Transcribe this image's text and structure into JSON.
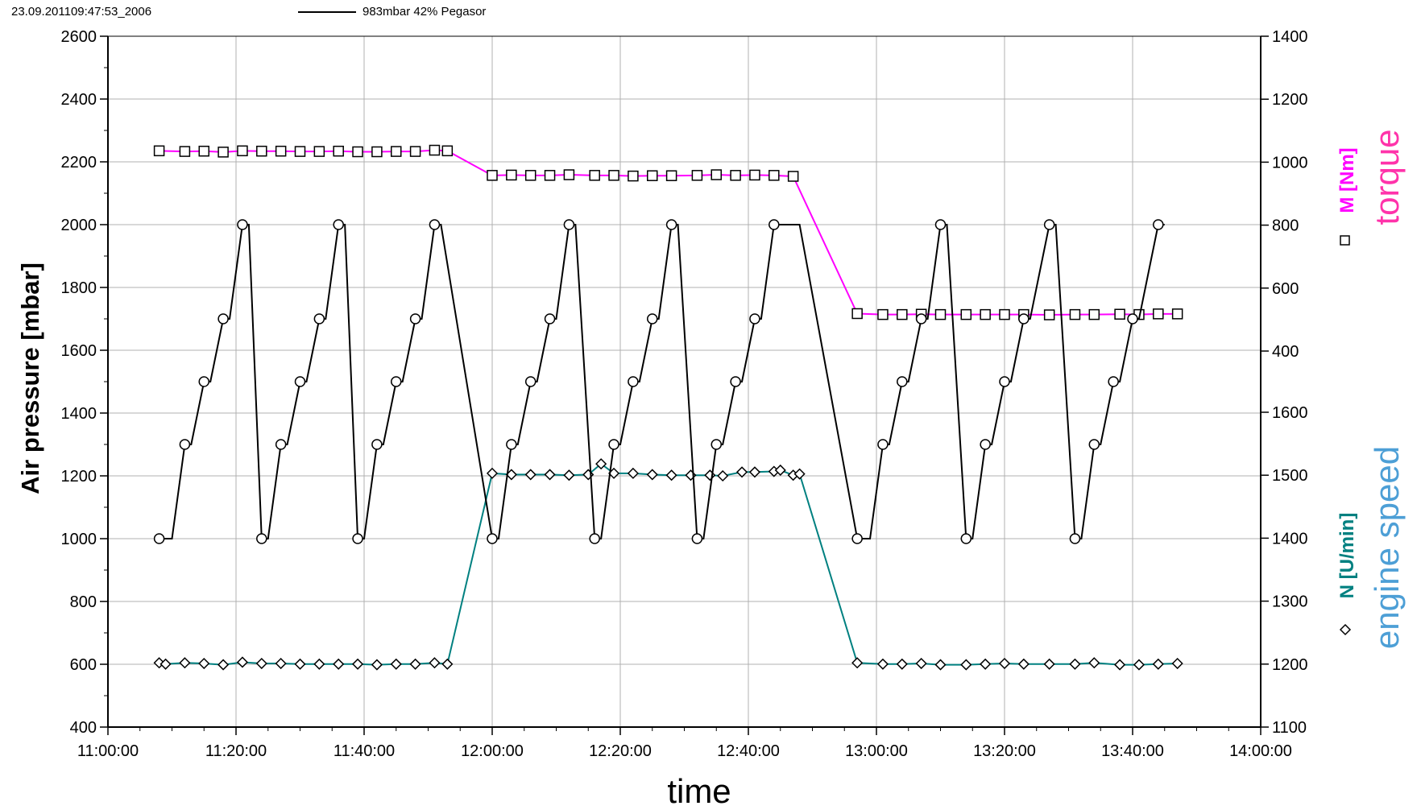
{
  "header": {
    "timestamp": "23.09.201109:47:53_2006",
    "legend_text": "983mbar  42%  Pegasor"
  },
  "chart_data": {
    "type": "line",
    "xlabel": "time",
    "x_ticks": [
      "11:00:00",
      "11:20:00",
      "11:40:00",
      "12:00:00",
      "12:20:00",
      "12:40:00",
      "13:00:00",
      "13:20:00",
      "13:40:00",
      "14:00:00"
    ],
    "xlim_minutes_after_11": [
      0,
      180
    ],
    "grid": true,
    "left_axis": {
      "label": "Air pressure  [mbar]",
      "ylim": [
        400,
        2600
      ],
      "ticks": [
        400,
        600,
        800,
        1000,
        1200,
        1400,
        1600,
        1800,
        2000,
        2200,
        2400,
        2600
      ]
    },
    "right_axis_torque": {
      "label": "torque",
      "unit_label": "M [Nm]",
      "ylim": [
        400,
        1400
      ],
      "ticks": [
        400,
        600,
        800,
        1000,
        1200,
        1400
      ],
      "color": "#ff00ff"
    },
    "right_axis_speed": {
      "label": "engine speed",
      "unit_label": "N [U/min]",
      "ylim": [
        1100,
        1600
      ],
      "ticks": [
        1100,
        1200,
        1300,
        1400,
        1500,
        1600
      ],
      "color": "#008080"
    },
    "series": [
      {
        "name": "983mbar  42%  Pegasor",
        "axis": "left",
        "color": "#000000",
        "marker": "circle",
        "x": [
          "11:08",
          "11:10",
          "11:12",
          "11:13",
          "11:15",
          "11:16",
          "11:18",
          "11:19",
          "11:21",
          "11:22",
          "11:24",
          "11:25",
          "11:27",
          "11:28",
          "11:30",
          "11:31",
          "11:33",
          "11:34",
          "11:36",
          "11:37",
          "11:39",
          "11:40",
          "11:42",
          "11:43",
          "11:45",
          "11:46",
          "11:48",
          "11:49",
          "11:51",
          "11:52",
          "12:00",
          "12:01",
          "12:03",
          "12:04",
          "12:06",
          "12:07",
          "12:09",
          "12:10",
          "12:12",
          "12:13",
          "12:16",
          "12:17",
          "12:19",
          "12:20",
          "12:22",
          "12:23",
          "12:25",
          "12:26",
          "12:28",
          "12:29",
          "12:32",
          "12:33",
          "12:35",
          "12:36",
          "12:38",
          "12:39",
          "12:41",
          "12:42",
          "12:44",
          "12:45",
          "12:47",
          "12:48",
          "12:57",
          "12:59",
          "13:01",
          "13:02",
          "13:04",
          "13:05",
          "13:07",
          "13:08",
          "13:10",
          "13:11",
          "13:14",
          "13:15",
          "13:17",
          "13:18",
          "13:20",
          "13:21",
          "13:23",
          "13:24",
          "13:27",
          "13:28",
          "13:31",
          "13:32",
          "13:34",
          "13:35",
          "13:37",
          "13:38",
          "13:40",
          "13:41",
          "13:44",
          "13:45"
        ],
        "y": [
          1000,
          1000,
          1300,
          1300,
          1500,
          1500,
          1700,
          1700,
          2000,
          2000,
          1000,
          1000,
          1300,
          1300,
          1500,
          1500,
          1700,
          1700,
          2000,
          2000,
          1000,
          1000,
          1300,
          1300,
          1500,
          1500,
          1700,
          1700,
          2000,
          2000,
          1000,
          1000,
          1300,
          1300,
          1500,
          1500,
          1700,
          1700,
          2000,
          2000,
          1000,
          1000,
          1300,
          1300,
          1500,
          1500,
          1700,
          1700,
          2000,
          2000,
          1000,
          1000,
          1300,
          1300,
          1500,
          1500,
          1700,
          1700,
          2000,
          2000,
          2000,
          2000,
          1000,
          1000,
          1300,
          1300,
          1500,
          1500,
          1700,
          1700,
          2000,
          2000,
          1000,
          1000,
          1300,
          1300,
          1500,
          1500,
          1700,
          1700,
          2000,
          2000,
          1000,
          1000,
          1300,
          1300,
          1500,
          1500,
          1700,
          1700,
          2000,
          2000
        ]
      },
      {
        "name": "M [Nm]",
        "axis": "right_torque",
        "color": "#ff00ff",
        "marker": "square",
        "x": [
          "11:08",
          "11:12",
          "11:15",
          "11:18",
          "11:21",
          "11:24",
          "11:27",
          "11:30",
          "11:33",
          "11:36",
          "11:39",
          "11:42",
          "11:45",
          "11:48",
          "11:51",
          "11:53",
          "12:00",
          "12:03",
          "12:06",
          "12:09",
          "12:12",
          "12:16",
          "12:19",
          "12:22",
          "12:25",
          "12:28",
          "12:32",
          "12:35",
          "12:38",
          "12:41",
          "12:44",
          "12:47",
          "12:57",
          "13:01",
          "13:04",
          "13:07",
          "13:10",
          "13:14",
          "13:17",
          "13:20",
          "13:23",
          "13:27",
          "13:31",
          "13:34",
          "13:38",
          "13:41",
          "13:44",
          "13:47"
        ],
        "y": [
          1036,
          1034,
          1035,
          1032,
          1036,
          1035,
          1035,
          1034,
          1034,
          1035,
          1033,
          1033,
          1034,
          1034,
          1038,
          1036,
          958,
          959,
          958,
          958,
          960,
          958,
          958,
          956,
          957,
          957,
          958,
          960,
          958,
          959,
          958,
          955,
          519,
          516,
          516,
          517,
          516,
          516,
          516,
          516,
          516,
          515,
          516,
          516,
          517,
          516,
          518,
          518
        ]
      },
      {
        "name": "N [U/min]",
        "axis": "right_speed",
        "color": "#008080",
        "marker": "diamond",
        "x": [
          "11:08",
          "11:09",
          "11:12",
          "11:15",
          "11:18",
          "11:21",
          "11:24",
          "11:27",
          "11:30",
          "11:33",
          "11:36",
          "11:39",
          "11:42",
          "11:45",
          "11:48",
          "11:51",
          "11:53",
          "12:00",
          "12:03",
          "12:06",
          "12:09",
          "12:12",
          "12:15",
          "12:17",
          "12:19",
          "12:22",
          "12:25",
          "12:28",
          "12:31",
          "12:34",
          "12:36",
          "12:39",
          "12:41",
          "12:44",
          "12:45",
          "12:47",
          "12:48",
          "12:57",
          "13:01",
          "13:04",
          "13:07",
          "13:10",
          "13:14",
          "13:17",
          "13:20",
          "13:23",
          "13:27",
          "13:31",
          "13:34",
          "13:38",
          "13:41",
          "13:44",
          "13:47"
        ],
        "y": [
          1202,
          1200,
          1202,
          1201,
          1199,
          1203,
          1201,
          1201,
          1200,
          1200,
          1200,
          1200,
          1199,
          1200,
          1200,
          1202,
          1200,
          1503,
          1501,
          1501,
          1501,
          1500,
          1501,
          1518,
          1503,
          1503,
          1501,
          1500,
          1500,
          1500,
          1499,
          1505,
          1505,
          1506,
          1508,
          1500,
          1502,
          1202,
          1200,
          1200,
          1201,
          1199,
          1199,
          1200,
          1201,
          1200,
          1200,
          1200,
          1202,
          1199,
          1199,
          1200,
          1201
        ]
      }
    ]
  }
}
